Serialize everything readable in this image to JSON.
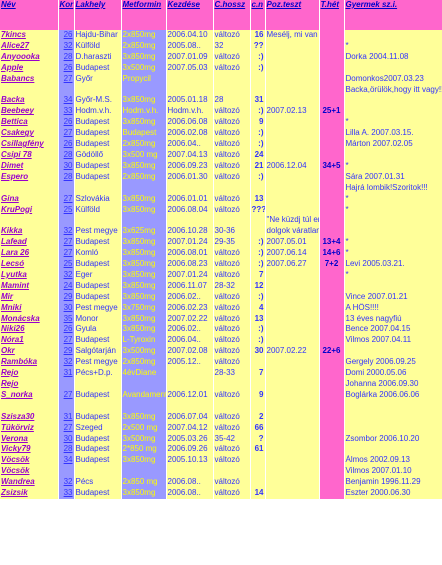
{
  "headers": [
    "Név",
    "Kor",
    "Lakhely",
    "Metformin",
    "Kezdése",
    "C.hossz",
    "c.n",
    "Poz.teszt",
    "T.hét",
    "Gyermek sz.i."
  ],
  "rows": [
    [
      "7kincs",
      "26",
      "Hajdu-Bihar",
      "2x850mg",
      "2006.04.10",
      "változó",
      "16",
      "Mesélj, mi van veled!",
      "",
      ""
    ],
    [
      "Alice27",
      "32",
      "Külföld",
      "2x850mg",
      "2005.08..",
      "32",
      "??",
      "",
      "",
      "*"
    ],
    [
      "Anyoooka",
      "28",
      "D.haraszti",
      "3x850mg",
      "2007.01.09",
      "változó",
      ":)",
      "",
      "",
      "Dorka    2004.11.08"
    ],
    [
      "Apple",
      "26",
      "Budapest",
      "3x500mg",
      "2007.05.03",
      "változó",
      ":)",
      "",
      "",
      ""
    ],
    [
      "Babancs",
      "27",
      "Győr",
      "Propycil",
      "",
      "",
      "",
      "",
      "",
      "Domonkos2007.03.23"
    ],
    [
      "",
      "",
      "",
      "",
      "",
      "",
      "",
      "",
      "",
      "Backa,örülök,hogy itt vagy!!!"
    ],
    [
      "Backa",
      "34",
      "Győr-M.S.",
      "3x850mg",
      "2005.01.18",
      "28",
      "31",
      "",
      "",
      ""
    ],
    [
      "Beebeey",
      "33",
      "Hodm.v.h.",
      "Hodm.v.h.",
      "Hodm.v.h.",
      "változó",
      ":)",
      "2007.02.13",
      "25+1",
      ""
    ],
    [
      "Bettica",
      "26",
      "Budapest",
      "3x850mg",
      "2006.06.08",
      "változó",
      "9",
      "",
      "",
      "*"
    ],
    [
      "Csakegy",
      "27",
      "Budapest",
      "Budapest",
      "2006.02.08",
      "változó",
      ":)",
      "",
      "",
      "Lilla A.   2007.03.15."
    ],
    [
      "Csillagfény",
      "26",
      "Budapest",
      "2x850mg",
      "2006.04..",
      "változó",
      ":)",
      "",
      "",
      "Márton    2007.02.05"
    ],
    [
      "Csipi 78",
      "28",
      "Gödöllő",
      "3x500 mg",
      "2007.04.13",
      "változó",
      "24",
      "",
      "",
      ""
    ],
    [
      "Dimet",
      "30",
      "Budapest",
      "3x850mg",
      "2006.09.23",
      "változó",
      "21",
      "2006.12.04",
      "34+5",
      "*"
    ],
    [
      "Espero",
      "28",
      "Budapest",
      "2x850mg",
      "2006.01.30",
      "változó",
      ":)",
      "",
      "",
      "Sára   2007.01.31"
    ],
    [
      "",
      "",
      "",
      "",
      "",
      "",
      "",
      "",
      "",
      "Hajrá lombik!Szoritok!!!"
    ],
    [
      "Gina",
      "27",
      "Szlovákia",
      "3x850mg",
      "2006.01.01",
      "változó",
      "13",
      "",
      "",
      "*"
    ],
    [
      "KruPogi",
      "25",
      "Külföld",
      "3x850mg",
      "2006.08.04",
      "változó",
      "???",
      "",
      "",
      "*"
    ],
    [
      "",
      "",
      "",
      "",
      "",
      "",
      "",
      "\"Ne küzdj túl erősen. A legjobb",
      "",
      ""
    ],
    [
      "Kikka",
      "32",
      "Pest megye",
      "3x625mg",
      "2006.10.28",
      "30-36",
      "",
      "dolgok váratlanul történnek!!!\"",
      "",
      ""
    ],
    [
      "Lafead",
      "27",
      "Budapest",
      "3x850mg",
      "2007.01.24",
      "29-35",
      ":)",
      "2007.05.01",
      "13+4",
      "*"
    ],
    [
      "Lara 26",
      "27",
      "Komló",
      "3x850mg",
      "2006.08.01",
      "változó",
      ":)",
      "2007.06.14",
      "14+6",
      "*"
    ],
    [
      "Lecsó",
      "25",
      "Budapest",
      "3x850mg",
      "2006.08.23",
      "változó",
      ":)",
      "2007.06.27",
      "7+2",
      "Levi 2005.03.21."
    ],
    [
      "Lyutka",
      "32",
      "Eger",
      "3x850mg",
      "2007.01.24",
      "változó",
      "7",
      "",
      "",
      "*"
    ],
    [
      "Mamint",
      "24",
      "Budapest",
      "3x850mg",
      "2006.11.07",
      "28-32",
      "12",
      "",
      "",
      ""
    ],
    [
      "Mir",
      "29",
      "Budapest",
      "3x850mg",
      "2006.02..",
      "változó",
      ":)",
      "",
      "",
      "Vince    2007.01.21"
    ],
    [
      "Mniki",
      "30",
      "Pest megye",
      "3x750mg",
      "2006.02.23",
      "változó",
      "4",
      "",
      "",
      "A HŐS!!!!"
    ],
    [
      "Monácska",
      "35",
      "Monor",
      "3x850mg",
      "2007.02.22",
      "változó",
      "13",
      "",
      "",
      "13 éves nagyfiú"
    ],
    [
      "Niki26",
      "26",
      "Gyula",
      "3x850mg",
      "2006.02..",
      "változó",
      ":)",
      "",
      "",
      "Bence 2007.04.15"
    ],
    [
      "Nóra1",
      "27",
      "Budapest",
      "L-Tyroxin",
      "2006.04..",
      "változó",
      ":)",
      "",
      "",
      "Vilmos   2007.04.11"
    ],
    [
      "Okr",
      "29",
      "Salgótarján",
      "3x500mg",
      "2007.02.08",
      "változó",
      "30",
      "2007.02.22",
      "22+6",
      ""
    ],
    [
      "Rambóka",
      "32",
      "Pest megye",
      "2x850mg",
      "2005.12..",
      "változó",
      "",
      "",
      "",
      "Gergely   2006.09.25"
    ],
    [
      "Rejo",
      "31",
      "Pécs+D.p.",
      "4évDiane",
      "",
      "28-33",
      "7",
      "",
      "",
      "Domi      2000.05.06"
    ],
    [
      "Rejo",
      "",
      "",
      "",
      "",
      "",
      "",
      "",
      "",
      "Johanna  2006.09.30"
    ],
    [
      "S_norka",
      "27",
      "Budapest",
      "Avandament 2000 mg",
      "2006.12.01",
      "változó",
      "9",
      "",
      "",
      "Boglárka 2006.06.06"
    ],
    [
      "",
      "",
      "",
      "",
      "",
      "",
      "",
      "",
      "",
      ""
    ],
    [
      "Szisza30",
      "31",
      "Budapest",
      "3x850mg",
      "2006.07.04",
      "változó",
      "2",
      "",
      "",
      ""
    ],
    [
      "Tükörviz",
      "27",
      "Szeged",
      "2x500 mg",
      "2007.04.12",
      "változó",
      "66",
      "",
      "",
      ""
    ],
    [
      "Verona",
      "30",
      "Budapest",
      "3x500mg",
      "2005.03.26",
      "35-42",
      "?",
      "",
      "",
      "Zsombor 2006.10.20"
    ],
    [
      "Vicky79",
      "28",
      "Budapest",
      "2*850 mg",
      "2006.09.26",
      "változó",
      "61",
      "",
      "",
      ""
    ],
    [
      "Vöcsök",
      "34",
      "Budapest",
      "3x850mg",
      "2005.10.13",
      "változó",
      "",
      "",
      "",
      "Álmos  2002.09.13"
    ],
    [
      "Vöcsök",
      "",
      "",
      "",
      "",
      "",
      "",
      "",
      "",
      "Vilmos    2007.01.10"
    ],
    [
      "Wandrea",
      "32",
      "Pécs",
      "2x850 mg",
      "2006.08..",
      "változó",
      "",
      "",
      "",
      "Benjamin 1996.11.29"
    ],
    [
      "Zsizsik",
      "33",
      "Budapest",
      "3x850mg",
      "2006.08..",
      "változó",
      "14",
      "",
      "",
      "Eszter      2000.06.30"
    ]
  ]
}
